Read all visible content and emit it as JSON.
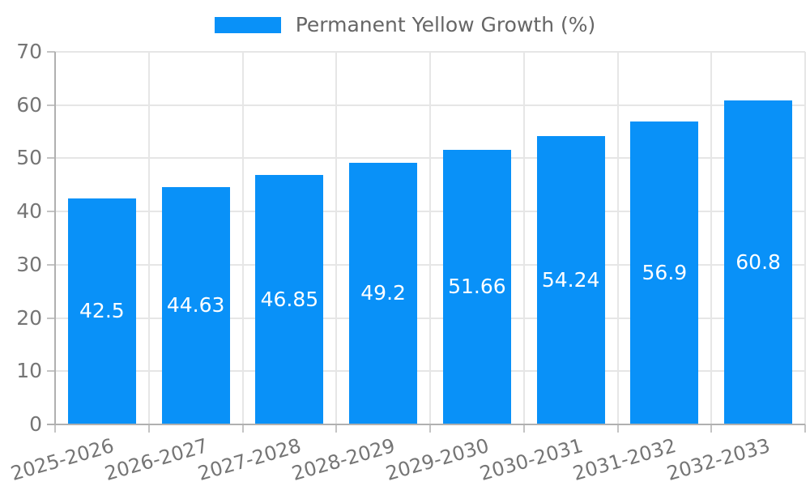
{
  "chart_data": {
    "type": "bar",
    "title": "",
    "legend": "Permanent Yellow Growth (%)",
    "legend_position": "top",
    "categories": [
      "2025-2026",
      "2026-2027",
      "2027-2028",
      "2028-2029",
      "2029-2030",
      "2030-2031",
      "2031-2032",
      "2032-2033"
    ],
    "series": [
      {
        "name": "Permanent Yellow Growth (%)",
        "values": [
          42.5,
          44.63,
          46.85,
          49.2,
          51.66,
          54.24,
          56.9,
          60.8
        ],
        "value_labels": [
          "42.5",
          "44.63",
          "46.85",
          "49.2",
          "51.66",
          "54.24",
          "56.9",
          "60.8"
        ]
      }
    ],
    "xlabel": "",
    "ylabel": "",
    "ylim": [
      0,
      70
    ],
    "yticks": [
      0,
      10,
      20,
      30,
      40,
      50,
      60,
      70
    ],
    "ytick_labels": [
      "0",
      "10",
      "20",
      "30",
      "40",
      "50",
      "60",
      "70"
    ],
    "grid": true,
    "colors": {
      "bar": "#0991f8",
      "grid": "#e6e6e6",
      "axis": "#b0b0b0",
      "tick": "#c4c4c4",
      "tick_text": "#757575",
      "legend_text": "#666666",
      "value_text": "#ffffff",
      "background": "#ffffff"
    }
  }
}
